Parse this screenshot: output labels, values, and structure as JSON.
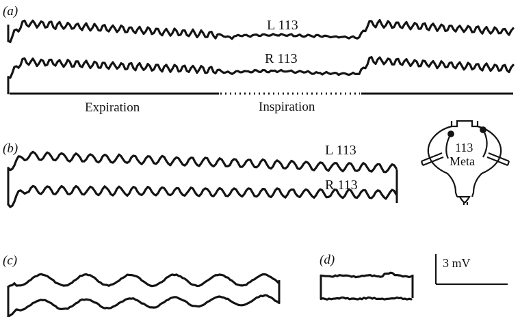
{
  "panels": {
    "a": {
      "label": "(a)",
      "trace_left": "L 113",
      "trace_right": "R 113",
      "phase_expiration": "Expiration",
      "phase_inspiration": "Inspiration"
    },
    "b": {
      "label": "(b)",
      "trace_left": "L 113",
      "trace_right": "R 113"
    },
    "c": {
      "label": "(c)"
    },
    "d": {
      "label": "(d)"
    }
  },
  "scale_bar": {
    "label": "3 mV"
  },
  "diagram": {
    "label_number": "113",
    "label_name": "Meta"
  }
}
